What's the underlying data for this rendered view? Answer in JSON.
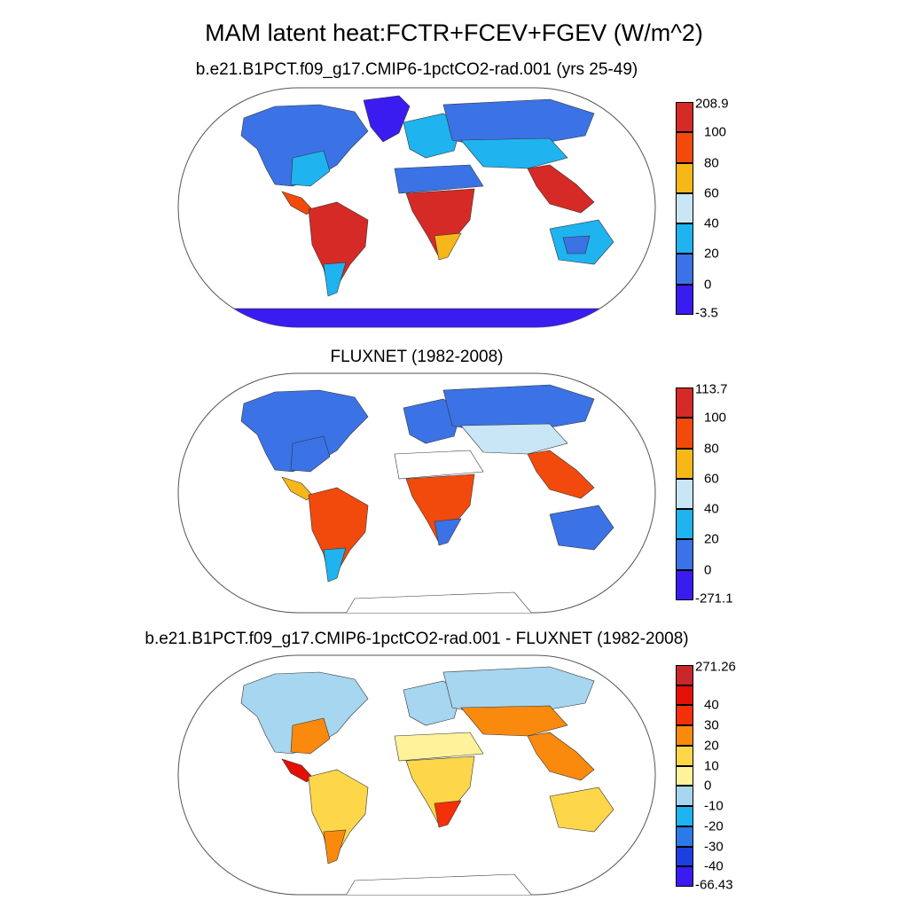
{
  "title": "MAM latent heat:FCTR+FCEV+FGEV (W/m^2)",
  "panels": [
    {
      "name": "model",
      "subtitle": "b.e21.B1PCT.f09_g17.CMIP6-1pctCO2-rad.001 (yrs 25-49)",
      "colorbar": {
        "colors": [
          "#3a1cf0",
          "#3b73e6",
          "#1fb3ef",
          "#c8e6f5",
          "#f7b719",
          "#f24a0c",
          "#d62a26"
        ],
        "labels": [
          "-3.5",
          "0",
          "20",
          "40",
          "60",
          "80",
          "100",
          "208.9"
        ]
      }
    },
    {
      "name": "fluxnet",
      "subtitle": "FLUXNET (1982-2008)",
      "colorbar": {
        "colors": [
          "#3a1cf0",
          "#3b73e6",
          "#1fb3ef",
          "#c8e6f5",
          "#f7b719",
          "#f24a0c",
          "#d62a26"
        ],
        "labels": [
          "-271.1",
          "0",
          "20",
          "40",
          "60",
          "80",
          "100",
          "113.7"
        ]
      }
    },
    {
      "name": "difference",
      "subtitle": "b.e21.B1PCT.f09_g17.CMIP6-1pctCO2-rad.001 - FLUXNET (1982-2008)",
      "colorbar": {
        "colors": [
          "#3a1cf0",
          "#1c3fe0",
          "#2a7ae8",
          "#1fb3ef",
          "#a6d6f0",
          "#fff29a",
          "#fdd64a",
          "#f98a0e",
          "#f43008",
          "#e40f06",
          "#c8282b"
        ],
        "labels": [
          "-66.43",
          "-40",
          "-30",
          "-20",
          "-10",
          "0",
          "10",
          "20",
          "30",
          "40",
          "271.26"
        ]
      }
    }
  ]
}
